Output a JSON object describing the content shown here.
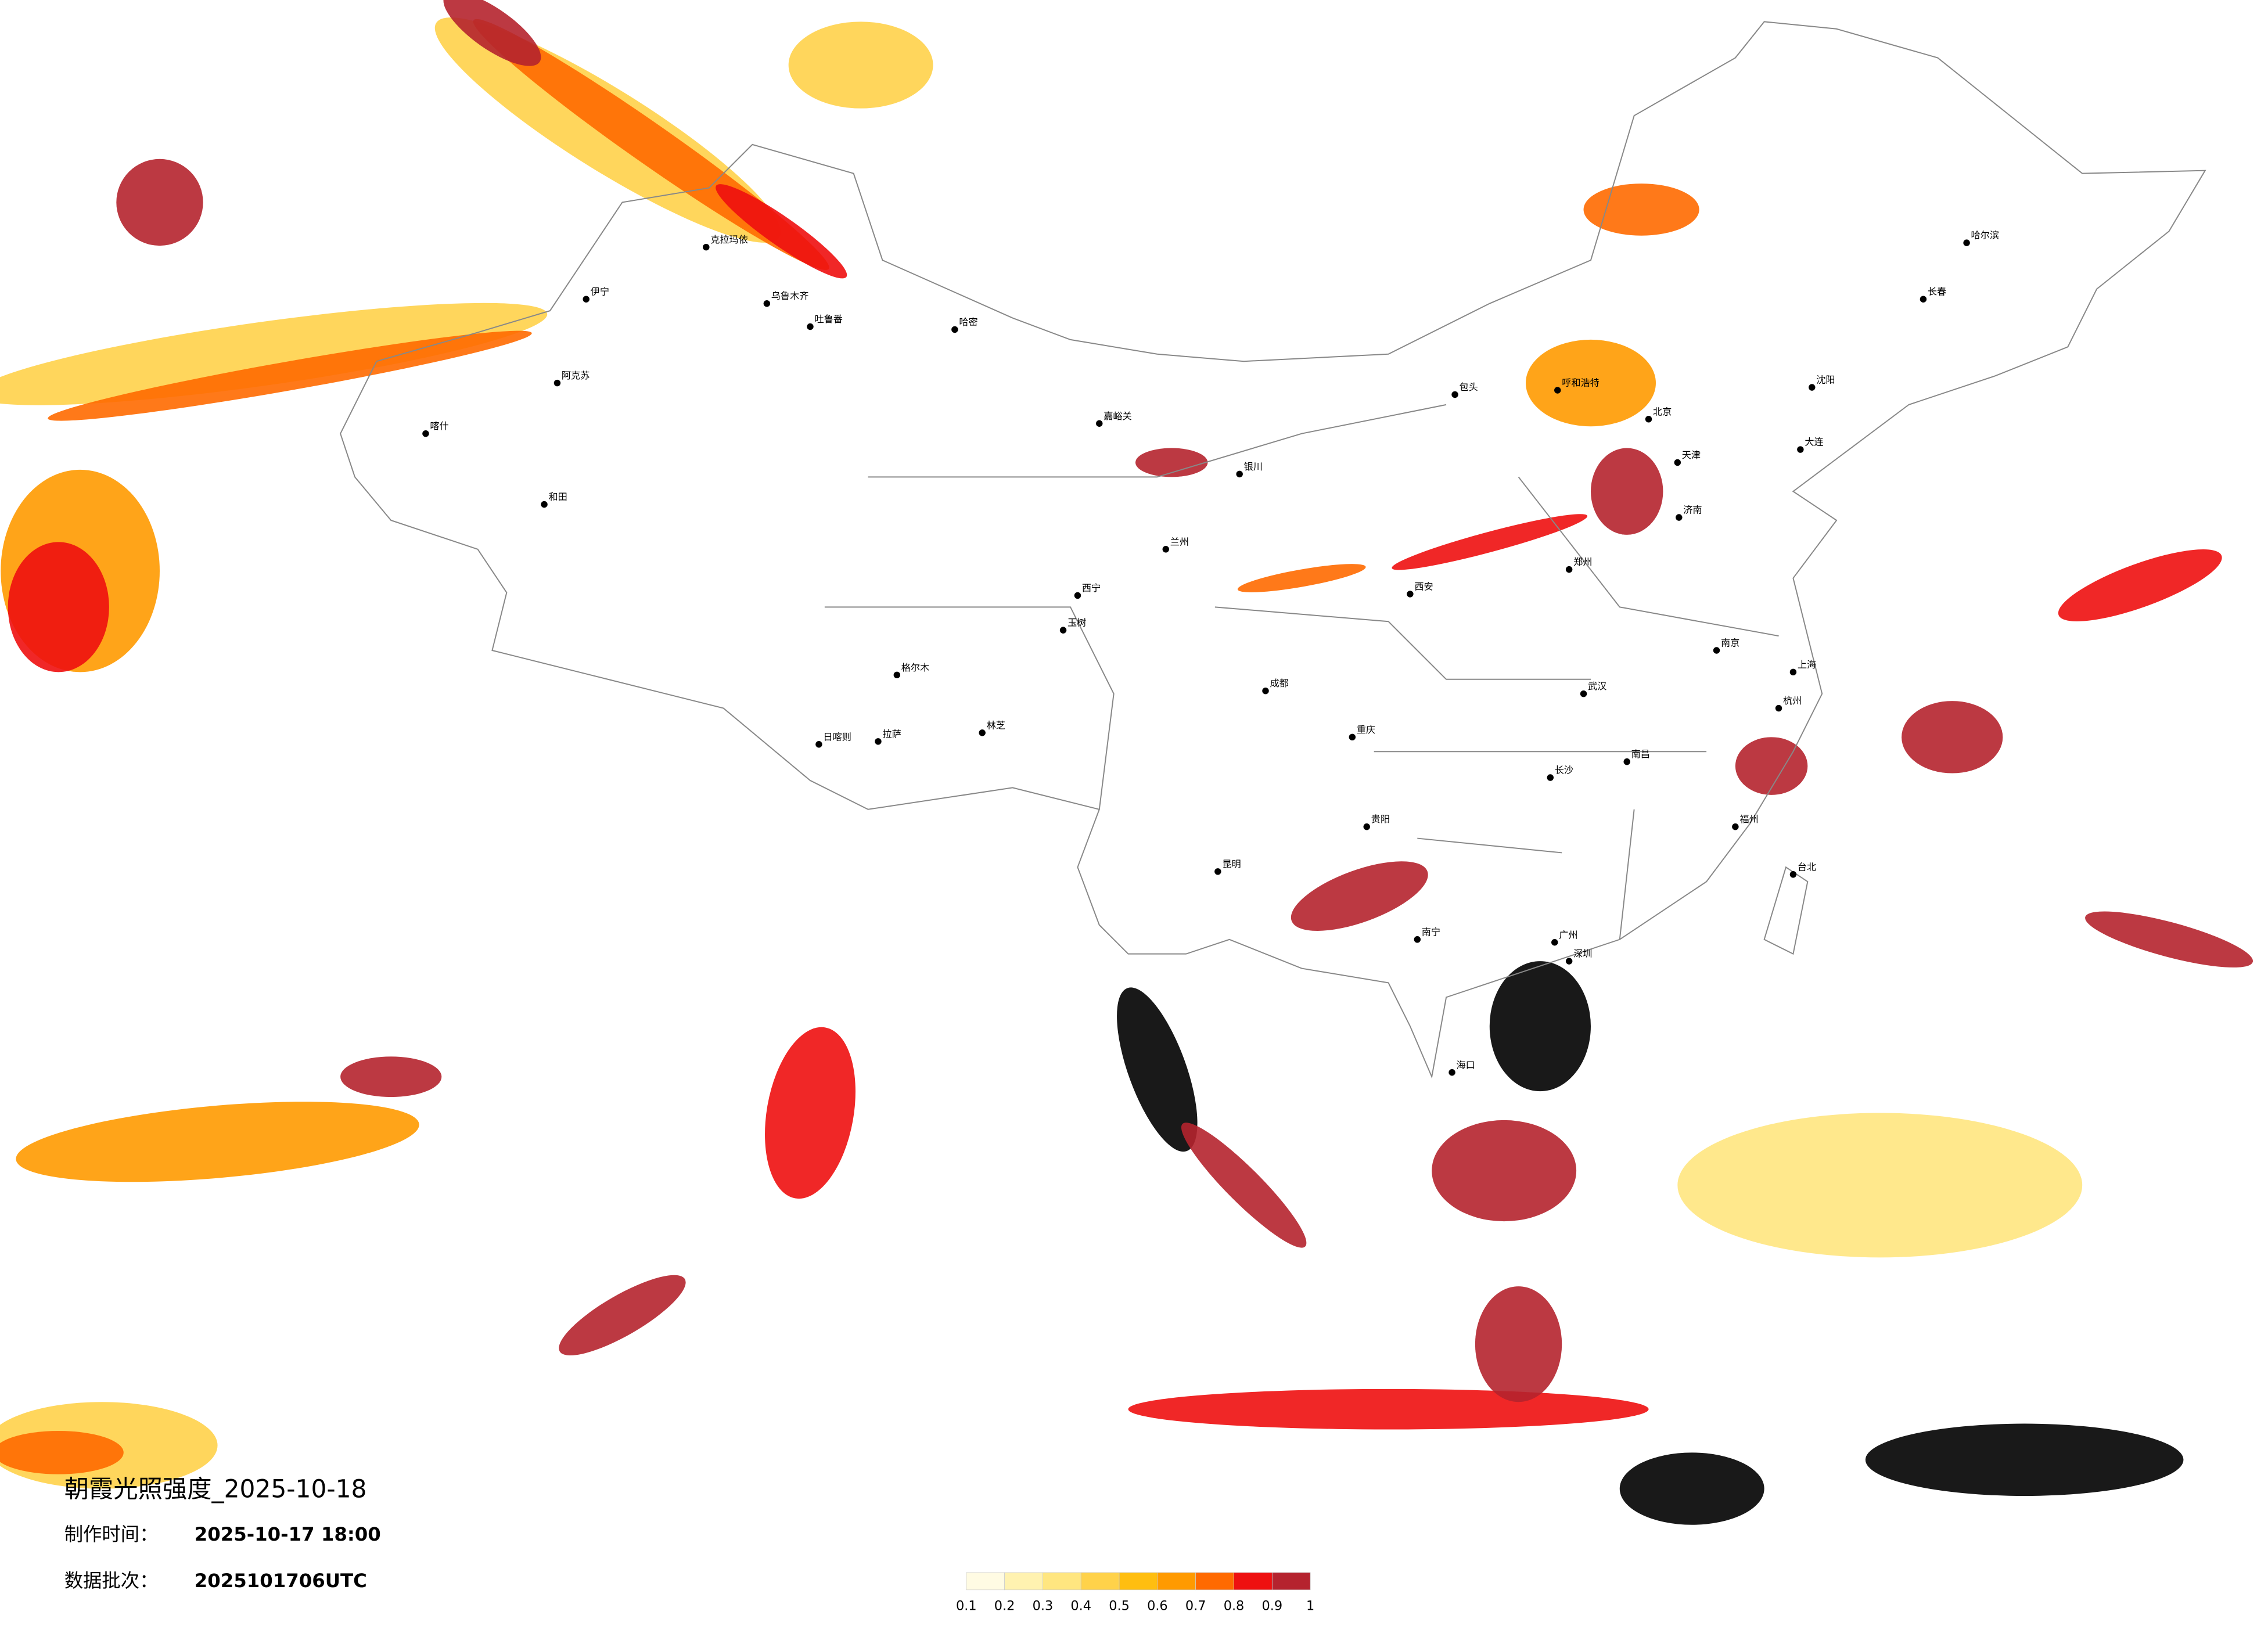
{
  "title": "朝霞光照强度_2025-10-18",
  "made_label": "制作时间：",
  "made_time": "2025-10-17 18:00",
  "batch_label": "数据批次：",
  "batch": "2025101706UTC",
  "legend": {
    "ticks": [
      0.1,
      0.2,
      0.3,
      0.4,
      0.5,
      0.6,
      0.7,
      0.8,
      0.9,
      1
    ],
    "colors": [
      "#fffbe3",
      "#fff2b0",
      "#ffe680",
      "#ffd24a",
      "#ffbe10",
      "#ff9a00",
      "#ff6a00",
      "#ee1010",
      "#b5232e"
    ]
  },
  "cities": [
    "伊宁",
    "克拉玛依",
    "乌鲁木齐",
    "吐鲁番",
    "哈密",
    "阿克苏",
    "喀什",
    "和田",
    "拉萨",
    "日喀则",
    "林芝",
    "格尔木",
    "玉树",
    "嘉峪关",
    "银川",
    "兰州",
    "西宁",
    "呼和浩特",
    "包头",
    "哈尔滨",
    "长春",
    "沈阳",
    "大连",
    "北京",
    "天津",
    "济南",
    "郑州",
    "西安",
    "成都",
    "重庆",
    "贵阳",
    "昆明",
    "南宁",
    "广州",
    "深圳",
    "福州",
    "杭州",
    "上海",
    "南京",
    "长沙",
    "南昌",
    "武汉",
    "海口",
    "台北"
  ]
}
